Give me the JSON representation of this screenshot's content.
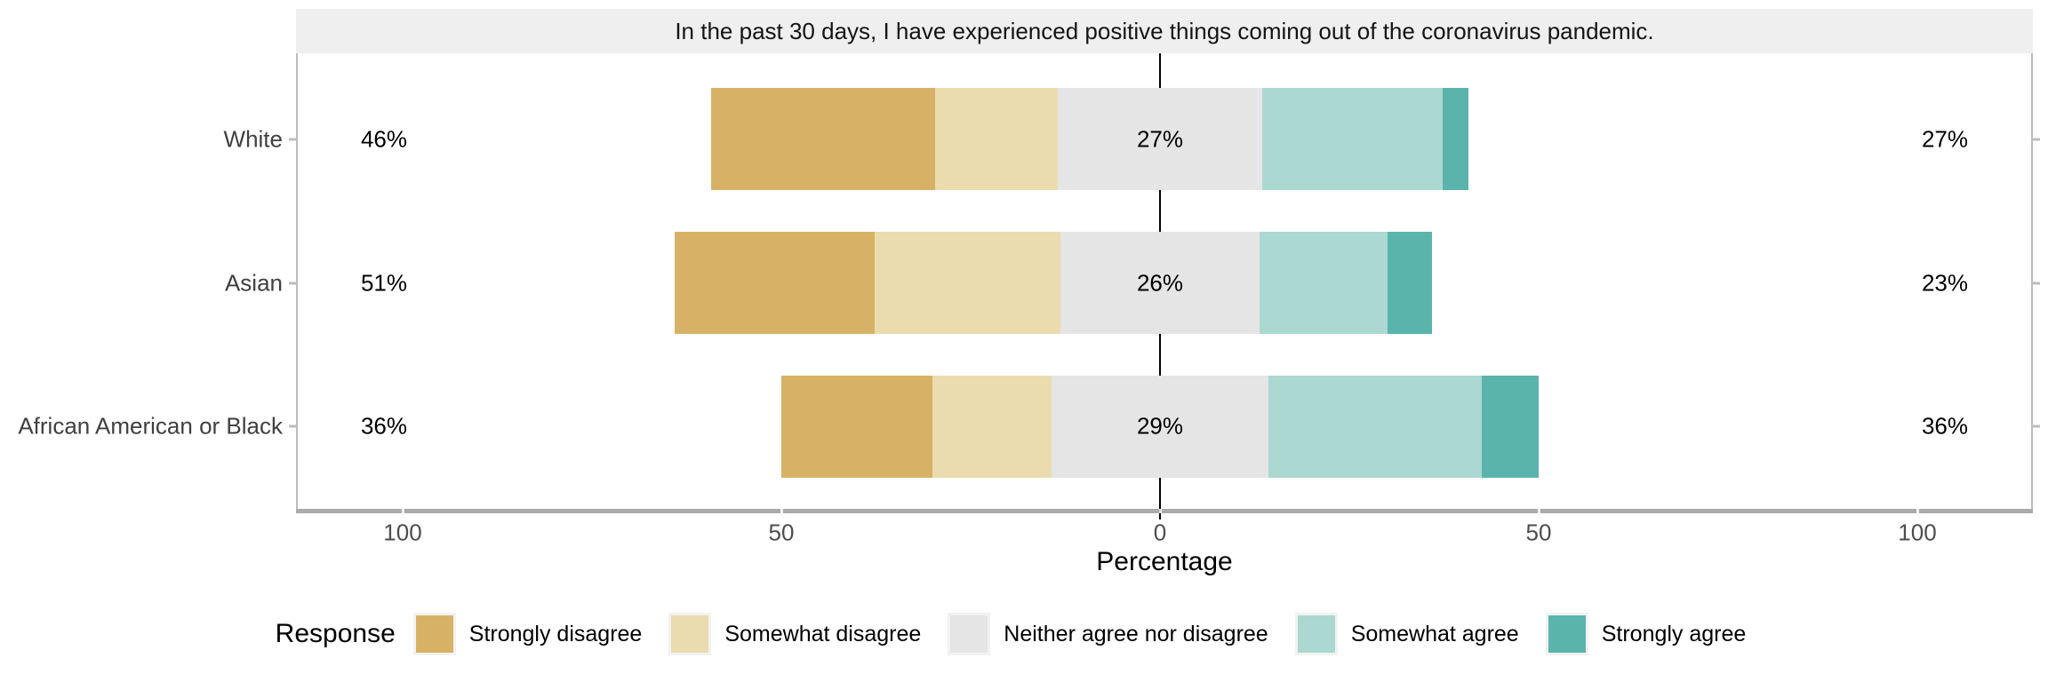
{
  "chart_data": {
    "type": "bar",
    "variant": "diverging-stacked-likert",
    "title": "In the past 30 days, I have experienced positive things coming out of the coronavirus pandemic.",
    "xlabel": "Percentage",
    "x_tick_labels": [
      "100",
      "50",
      "0",
      "50",
      "100"
    ],
    "x_tick_values": [
      -100,
      -50,
      0,
      50,
      100
    ],
    "xlim": [
      -115,
      115
    ],
    "grid": "off",
    "legend_title": "Response",
    "legend_position": "bottom",
    "series": [
      {
        "name": "Strongly disagree",
        "color": "#D7B266"
      },
      {
        "name": "Somewhat disagree",
        "color": "#EADCAE"
      },
      {
        "name": "Neither agree nor disagree",
        "color": "#E5E5E5"
      },
      {
        "name": "Somewhat agree",
        "color": "#ABD8D1"
      },
      {
        "name": "Strongly agree",
        "color": "#5AB4AC"
      }
    ],
    "categories": [
      "White",
      "Asian",
      "African American or Black"
    ],
    "rows": [
      {
        "category": "White",
        "values": [
          29.5,
          16.2,
          27.1,
          23.8,
          3.4
        ],
        "left_total_label": "46%",
        "neutral_label": "27%",
        "right_total_label": "27%"
      },
      {
        "category": "Asian",
        "values": [
          26.4,
          24.6,
          26.2,
          16.9,
          5.9
        ],
        "left_total_label": "51%",
        "neutral_label": "26%",
        "right_total_label": "23%"
      },
      {
        "category": "African American or Black",
        "values": [
          20.0,
          15.7,
          28.7,
          28.1,
          7.5
        ],
        "left_total_label": "36%",
        "neutral_label": "29%",
        "right_total_label": "36%"
      }
    ],
    "colors": {
      "strip_background": "#EFEFEF",
      "panel_border": "#BDBDBD",
      "axis_line": "#ABABAB",
      "axis_text": "#4D4D4D",
      "category_text": "#404040",
      "annotation_text": "#000000",
      "zero_line": "#000000"
    }
  }
}
